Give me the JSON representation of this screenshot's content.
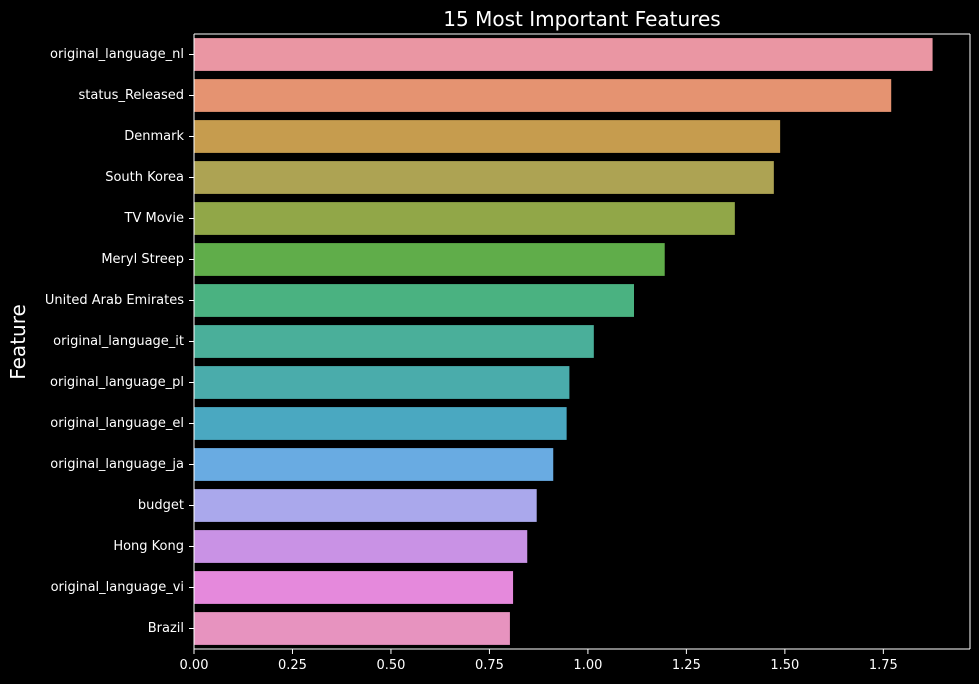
{
  "chart_data": {
    "type": "bar",
    "orientation": "horizontal",
    "title": "15 Most Important Features",
    "xlabel": "",
    "ylabel": "Feature",
    "xlim": [
      0,
      1.97
    ],
    "xticks": [
      "0.00",
      "0.25",
      "0.50",
      "0.75",
      "1.00",
      "1.25",
      "1.50",
      "1.75"
    ],
    "grid": false,
    "legend": "none",
    "background": "#000000",
    "categories": [
      "original_language_nl",
      "status_Released",
      "Denmark",
      "South Korea",
      "TV Movie",
      "Meryl Streep",
      "United Arab Emirates",
      "original_language_it",
      "original_language_pl",
      "original_language_el",
      "original_language_ja",
      "budget",
      "Hong Kong",
      "original_language_vi",
      "Brazil"
    ],
    "values": [
      1.875,
      1.77,
      1.488,
      1.472,
      1.373,
      1.195,
      1.117,
      1.015,
      0.953,
      0.946,
      0.912,
      0.87,
      0.846,
      0.81,
      0.802
    ],
    "colors": [
      "#ea96a3",
      "#e59371",
      "#c69c4e",
      "#ada353",
      "#91a748",
      "#60ad4a",
      "#4ab281",
      "#4aaf9a",
      "#4aacab",
      "#4aa8c1",
      "#69abe2",
      "#aaa8ec",
      "#c992e5",
      "#e589dc",
      "#e793bf"
    ]
  }
}
